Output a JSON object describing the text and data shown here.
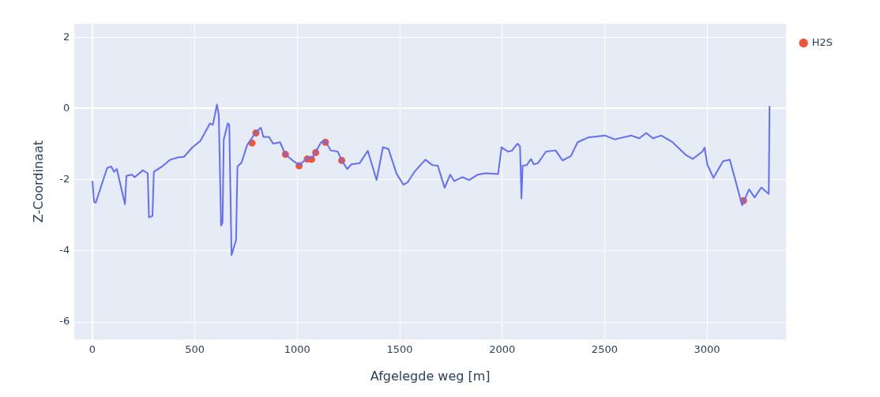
{
  "chart_data": {
    "type": "line",
    "xlabel": "Afgelegde weg [m]",
    "ylabel": "Z-Coordinaat",
    "xlim": [
      -88,
      3386
    ],
    "ylim": [
      -6.49,
      2.38
    ],
    "xticks": [
      0,
      500,
      1000,
      1500,
      2000,
      2500,
      3000
    ],
    "yticks": [
      -6,
      -4,
      -2,
      0,
      2
    ],
    "grid": true,
    "legend": "top right",
    "series": [
      {
        "color": "#636efa",
        "marker": "none",
        "line_style": "solid",
        "x": [
          0,
          8,
          16,
          72,
          92,
          106,
          119,
          159,
          166,
          193,
          206,
          246,
          270,
          276,
          293,
          300,
          340,
          380,
          420,
          447,
          487,
          527,
          574,
          588,
          608,
          617,
          628,
          635,
          641,
          661,
          668,
          679,
          701,
          708,
          728,
          755,
          795,
          822,
          835,
          862,
          882,
          916,
          942,
          982,
          1009,
          1049,
          1076,
          1116,
          1137,
          1163,
          1197,
          1217,
          1244,
          1264,
          1304,
          1344,
          1364,
          1387,
          1418,
          1445,
          1485,
          1518,
          1538,
          1572,
          1625,
          1659,
          1686,
          1719,
          1746,
          1766,
          1806,
          1839,
          1880,
          1920,
          1980,
          1997,
          2027,
          2047,
          2074,
          2087,
          2094,
          2100,
          2120,
          2141,
          2154,
          2174,
          2214,
          2261,
          2294,
          2335,
          2368,
          2422,
          2502,
          2549,
          2629,
          2669,
          2703,
          2736,
          2776,
          2830,
          2897,
          2930,
          2977,
          2988,
          3001,
          3031,
          3078,
          3111,
          3171,
          3205,
          3232,
          3265,
          3301,
          3305
        ],
        "values": [
          -2.04,
          -2.61,
          -2.65,
          -1.67,
          -1.63,
          -1.78,
          -1.7,
          -2.69,
          -1.89,
          -1.86,
          -1.93,
          -1.74,
          -1.82,
          -3.06,
          -3.02,
          -1.78,
          -1.63,
          -1.44,
          -1.37,
          -1.36,
          -1.1,
          -0.91,
          -0.42,
          -0.46,
          0.11,
          -0.2,
          -3.29,
          -3.21,
          -0.87,
          -0.42,
          -0.46,
          -4.12,
          -3.7,
          -1.63,
          -1.52,
          -1.03,
          -0.69,
          -0.54,
          -0.8,
          -0.8,
          -0.99,
          -0.95,
          -1.29,
          -1.48,
          -1.59,
          -1.4,
          -1.36,
          -0.95,
          -0.91,
          -1.18,
          -1.21,
          -1.46,
          -1.7,
          -1.57,
          -1.54,
          -1.19,
          -1.57,
          -2.01,
          -1.09,
          -1.14,
          -1.84,
          -2.14,
          -2.08,
          -1.78,
          -1.44,
          -1.59,
          -1.61,
          -2.23,
          -1.86,
          -2.04,
          -1.93,
          -2.01,
          -1.86,
          -1.82,
          -1.84,
          -1.09,
          -1.21,
          -1.19,
          -0.99,
          -1.06,
          -2.53,
          -1.61,
          -1.59,
          -1.42,
          -1.57,
          -1.54,
          -1.21,
          -1.18,
          -1.46,
          -1.34,
          -0.95,
          -0.81,
          -0.76,
          -0.87,
          -0.76,
          -0.84,
          -0.69,
          -0.84,
          -0.76,
          -0.94,
          -1.31,
          -1.42,
          -1.21,
          -1.1,
          -1.57,
          -1.95,
          -1.48,
          -1.44,
          -2.72,
          -2.27,
          -2.5,
          -2.22,
          -2.4,
          0.07
        ]
      },
      {
        "type": "scatter",
        "name": "H2S",
        "color": "#ef553b",
        "marker": "circle",
        "x": [
          779,
          798,
          942,
          1009,
          1049,
          1070,
          1090,
          1137,
          1217,
          3178
        ],
        "values": [
          -0.97,
          -0.69,
          -1.29,
          -1.61,
          -1.42,
          -1.43,
          -1.24,
          -0.95,
          -1.46,
          -2.59
        ]
      }
    ]
  }
}
